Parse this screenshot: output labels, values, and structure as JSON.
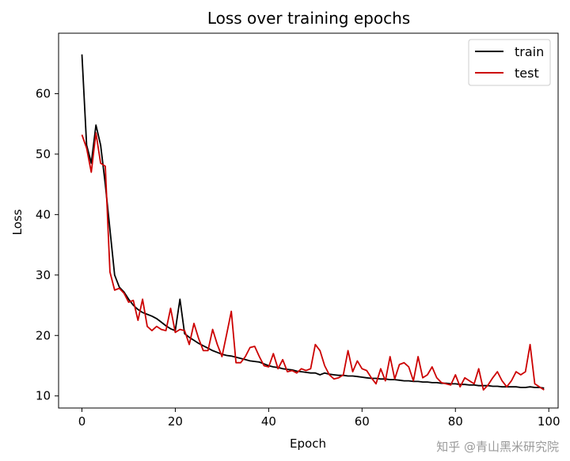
{
  "chart_data": {
    "type": "line",
    "title": "Loss over training epochs",
    "xlabel": "Epoch",
    "ylabel": "Loss",
    "xlim": [
      -5,
      102
    ],
    "ylim": [
      8,
      70
    ],
    "xticks": [
      0,
      20,
      40,
      60,
      80,
      100
    ],
    "yticks": [
      10,
      20,
      30,
      40,
      50,
      60
    ],
    "grid": false,
    "legend_position": "top-right",
    "series": [
      {
        "name": "train",
        "color": "#000000",
        "x": [
          0,
          1,
          2,
          3,
          4,
          5,
          6,
          7,
          8,
          9,
          10,
          11,
          12,
          13,
          14,
          15,
          16,
          17,
          18,
          19,
          20,
          21,
          22,
          23,
          24,
          25,
          26,
          27,
          28,
          29,
          30,
          31,
          32,
          33,
          34,
          35,
          36,
          37,
          38,
          39,
          40,
          41,
          42,
          43,
          44,
          45,
          46,
          47,
          48,
          49,
          50,
          51,
          52,
          53,
          54,
          55,
          56,
          57,
          58,
          59,
          60,
          61,
          62,
          63,
          64,
          65,
          66,
          67,
          68,
          69,
          70,
          71,
          72,
          73,
          74,
          75,
          76,
          77,
          78,
          79,
          80,
          81,
          82,
          83,
          84,
          85,
          86,
          87,
          88,
          89,
          90,
          91,
          92,
          93,
          94,
          95,
          96,
          97,
          98,
          99
        ],
        "values": [
          66.5,
          51.5,
          48.5,
          54.8,
          51.5,
          45.0,
          37.5,
          30.0,
          28.0,
          27.2,
          26.0,
          25.0,
          24.3,
          23.8,
          23.5,
          23.2,
          22.8,
          22.2,
          21.6,
          21.1,
          20.8,
          26.0,
          20.3,
          19.7,
          19.2,
          18.7,
          18.3,
          17.9,
          17.5,
          17.2,
          16.9,
          16.7,
          16.6,
          16.4,
          16.2,
          16.0,
          15.8,
          15.7,
          15.6,
          15.3,
          15.0,
          14.8,
          14.7,
          14.5,
          14.4,
          14.3,
          14.1,
          14.0,
          13.9,
          13.8,
          13.8,
          13.5,
          13.8,
          13.6,
          13.5,
          13.4,
          13.4,
          13.3,
          13.3,
          13.2,
          13.1,
          13.0,
          12.9,
          12.9,
          12.8,
          12.8,
          12.7,
          12.7,
          12.6,
          12.5,
          12.5,
          12.4,
          12.4,
          12.3,
          12.3,
          12.2,
          12.2,
          12.1,
          12.1,
          12.0,
          12.0,
          11.9,
          11.9,
          11.8,
          11.8,
          11.7,
          11.7,
          11.7,
          11.6,
          11.6,
          11.5,
          11.5,
          11.5,
          11.5,
          11.4,
          11.4,
          11.5,
          11.4,
          11.4,
          11.3
        ]
      },
      {
        "name": "test",
        "color": "#cc0000",
        "x": [
          0,
          1,
          2,
          3,
          4,
          5,
          6,
          7,
          8,
          9,
          10,
          11,
          12,
          13,
          14,
          15,
          16,
          17,
          18,
          19,
          20,
          21,
          22,
          23,
          24,
          25,
          26,
          27,
          28,
          29,
          30,
          31,
          32,
          33,
          34,
          35,
          36,
          37,
          38,
          39,
          40,
          41,
          42,
          43,
          44,
          45,
          46,
          47,
          48,
          49,
          50,
          51,
          52,
          53,
          54,
          55,
          56,
          57,
          58,
          59,
          60,
          61,
          62,
          63,
          64,
          65,
          66,
          67,
          68,
          69,
          70,
          71,
          72,
          73,
          74,
          75,
          76,
          77,
          78,
          79,
          80,
          81,
          82,
          83,
          84,
          85,
          86,
          87,
          88,
          89,
          90,
          91,
          92,
          93,
          94,
          95,
          96,
          97,
          98,
          99
        ],
        "values": [
          53.2,
          51.0,
          47.0,
          53.5,
          48.5,
          48.0,
          30.5,
          27.5,
          27.8,
          27.0,
          25.5,
          25.8,
          22.5,
          26.0,
          21.5,
          20.8,
          21.5,
          21.0,
          20.8,
          24.5,
          20.5,
          21.0,
          20.8,
          18.5,
          22.0,
          19.5,
          17.5,
          17.5,
          21.0,
          18.5,
          16.5,
          20.2,
          24.0,
          15.5,
          15.5,
          16.5,
          18.0,
          18.2,
          16.5,
          15.0,
          14.8,
          17.0,
          14.5,
          16.0,
          14.0,
          14.2,
          13.8,
          14.5,
          14.2,
          14.5,
          18.5,
          17.5,
          15.0,
          13.5,
          12.8,
          13.0,
          13.5,
          17.5,
          14.0,
          15.8,
          14.5,
          14.2,
          13.0,
          12.0,
          14.5,
          12.5,
          16.5,
          12.8,
          15.2,
          15.5,
          14.8,
          12.5,
          16.5,
          13.0,
          13.5,
          14.8,
          13.0,
          12.2,
          12.0,
          11.8,
          13.5,
          11.5,
          13.0,
          12.5,
          12.0,
          14.5,
          11.0,
          11.8,
          13.0,
          14.0,
          12.5,
          11.5,
          12.5,
          14.0,
          13.5,
          14.0,
          18.5,
          12.0,
          11.5,
          11.0
        ]
      }
    ]
  },
  "watermark": "知乎 @青山黑米研究院"
}
